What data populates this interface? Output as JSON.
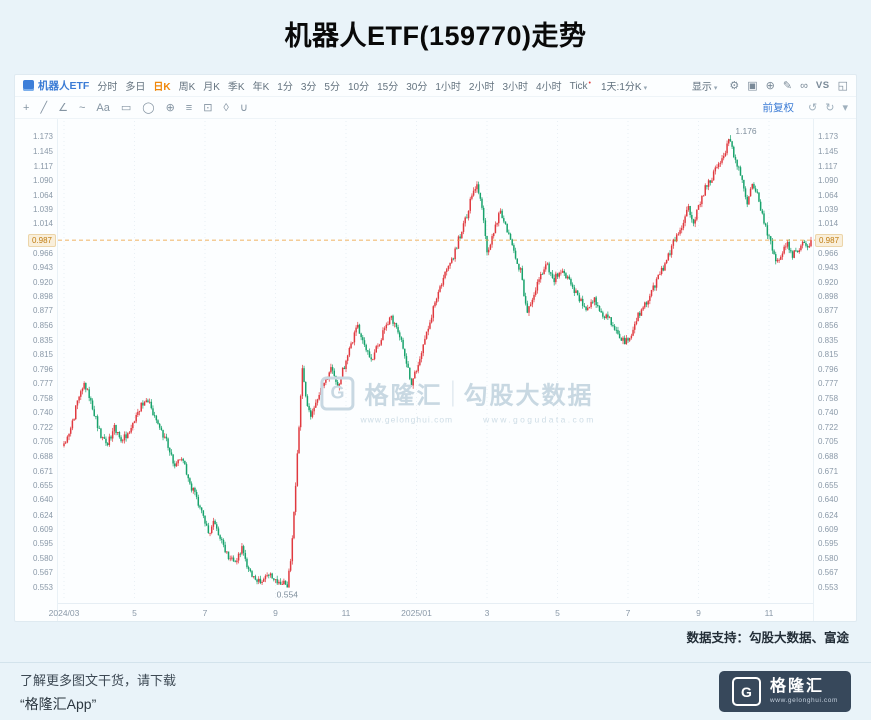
{
  "page": {
    "title": "机器人ETF(159770)走势"
  },
  "toolbar": {
    "symbol": "机器人ETF",
    "periods": [
      "分时",
      "多日",
      "日K",
      "周K",
      "月K",
      "季K",
      "年K",
      "1分",
      "3分",
      "5分",
      "10分",
      "15分",
      "30分",
      "1小时",
      "2小时",
      "3小时",
      "4小时",
      "Tick"
    ],
    "selected_period": "日K",
    "interval_selector": "1天:1分K",
    "display_label": "显示",
    "adjust_label": "前复权"
  },
  "toolbar_right_icons": [
    {
      "name": "settings-gear-icon",
      "glyph": "⚙"
    },
    {
      "name": "layout-grid-icon",
      "glyph": "▣"
    },
    {
      "name": "crosshair-icon",
      "glyph": "⊕"
    },
    {
      "name": "draw-pencil-icon",
      "glyph": "✎"
    },
    {
      "name": "link-chart-icon",
      "glyph": "∞"
    },
    {
      "name": "compare-vs-button",
      "glyph": "VS"
    },
    {
      "name": "fullscreen-icon",
      "glyph": "◱"
    }
  ],
  "draw_tool_icons": [
    {
      "name": "cursor-tool-icon",
      "glyph": "+"
    },
    {
      "name": "trendline-tool-icon",
      "glyph": "╱"
    },
    {
      "name": "angle-tool-icon",
      "glyph": "∠"
    },
    {
      "name": "wave-tool-icon",
      "glyph": "~"
    },
    {
      "name": "text-tool-icon",
      "glyph": "Aa"
    },
    {
      "name": "rect-tool-icon",
      "glyph": "▭"
    },
    {
      "name": "ellipse-tool-icon",
      "glyph": "◯"
    },
    {
      "name": "fib-tool-icon",
      "glyph": "⊕"
    },
    {
      "name": "measure-tool-icon",
      "glyph": "≡"
    },
    {
      "name": "snapshot-tool-icon",
      "glyph": "⊡"
    },
    {
      "name": "eraser-tool-icon",
      "glyph": "◊"
    },
    {
      "name": "magnet-tool-icon",
      "glyph": "∪"
    }
  ],
  "history_icons": [
    {
      "name": "undo-icon",
      "glyph": "↺"
    },
    {
      "name": "redo-icon",
      "glyph": "↻"
    },
    {
      "name": "collapse-toolbar-icon",
      "glyph": "▾"
    }
  ],
  "chart_data": {
    "type": "candlestick",
    "symbol": "机器人ETF",
    "code": "159770",
    "timeframe": "日K",
    "adjustment": "前复权",
    "y_scale": "log",
    "y_range": [
      0.546,
      1.192
    ],
    "up_color": "#e0393f",
    "down_color": "#17a26b",
    "grid_color": "#e4edf3",
    "price_line_color": "#ec9a2f",
    "last_price": 0.987,
    "price_tag": "0.987",
    "num_candles": 446,
    "low_annotation": {
      "label": "0.554",
      "index": 133
    },
    "high_annotation": {
      "label": "1.176",
      "index": 397
    },
    "y_ticks": [
      "1.173",
      "1.145",
      "1.117",
      "1.090",
      "1.064",
      "1.039",
      "1.014",
      "0.990",
      "0.966",
      "0.943",
      "0.920",
      "0.898",
      "0.877",
      "0.856",
      "0.835",
      "0.815",
      "0.796",
      "0.777",
      "0.758",
      "0.740",
      "0.722",
      "0.705",
      "0.688",
      "0.671",
      "0.655",
      "0.640",
      "0.624",
      "0.609",
      "0.595",
      "0.580",
      "0.567",
      "0.553"
    ],
    "x_ticks": [
      {
        "label": "2024/03",
        "index": 0
      },
      {
        "label": "5",
        "index": 42
      },
      {
        "label": "7",
        "index": 84
      },
      {
        "label": "9",
        "index": 126
      },
      {
        "label": "11",
        "index": 168
      },
      {
        "label": "2025/01",
        "index": 210
      },
      {
        "label": "3",
        "index": 252
      },
      {
        "label": "5",
        "index": 294
      },
      {
        "label": "7",
        "index": 336
      },
      {
        "label": "9",
        "index": 378
      },
      {
        "label": "11",
        "index": 420
      }
    ],
    "price_path": [
      [
        0,
        0.7
      ],
      [
        4,
        0.722
      ],
      [
        8,
        0.752
      ],
      [
        12,
        0.778
      ],
      [
        15,
        0.76
      ],
      [
        18,
        0.738
      ],
      [
        22,
        0.712
      ],
      [
        26,
        0.705
      ],
      [
        30,
        0.722
      ],
      [
        34,
        0.708
      ],
      [
        38,
        0.714
      ],
      [
        42,
        0.728
      ],
      [
        46,
        0.748
      ],
      [
        50,
        0.753
      ],
      [
        54,
        0.738
      ],
      [
        58,
        0.718
      ],
      [
        62,
        0.7
      ],
      [
        66,
        0.673
      ],
      [
        70,
        0.688
      ],
      [
        74,
        0.662
      ],
      [
        78,
        0.646
      ],
      [
        82,
        0.628
      ],
      [
        86,
        0.606
      ],
      [
        90,
        0.618
      ],
      [
        94,
        0.596
      ],
      [
        98,
        0.583
      ],
      [
        102,
        0.576
      ],
      [
        106,
        0.589
      ],
      [
        110,
        0.571
      ],
      [
        114,
        0.561
      ],
      [
        118,
        0.557
      ],
      [
        122,
        0.568
      ],
      [
        126,
        0.561
      ],
      [
        130,
        0.557
      ],
      [
        133,
        0.555
      ],
      [
        135,
        0.576
      ],
      [
        137,
        0.626
      ],
      [
        139,
        0.692
      ],
      [
        141,
        0.762
      ],
      [
        142,
        0.798
      ],
      [
        144,
        0.756
      ],
      [
        147,
        0.733
      ],
      [
        151,
        0.758
      ],
      [
        155,
        0.776
      ],
      [
        159,
        0.798
      ],
      [
        163,
        0.773
      ],
      [
        167,
        0.8
      ],
      [
        171,
        0.83
      ],
      [
        175,
        0.856
      ],
      [
        179,
        0.832
      ],
      [
        183,
        0.806
      ],
      [
        187,
        0.828
      ],
      [
        191,
        0.852
      ],
      [
        195,
        0.868
      ],
      [
        199,
        0.846
      ],
      [
        203,
        0.816
      ],
      [
        207,
        0.776
      ],
      [
        211,
        0.8
      ],
      [
        215,
        0.836
      ],
      [
        219,
        0.872
      ],
      [
        223,
        0.906
      ],
      [
        227,
        0.93
      ],
      [
        231,
        0.952
      ],
      [
        235,
        0.988
      ],
      [
        239,
        1.02
      ],
      [
        243,
        1.062
      ],
      [
        246,
        1.09
      ],
      [
        249,
        1.042
      ],
      [
        252,
        0.962
      ],
      [
        256,
        1.0
      ],
      [
        260,
        1.036
      ],
      [
        264,
        1.006
      ],
      [
        268,
        0.972
      ],
      [
        272,
        0.936
      ],
      [
        276,
        0.872
      ],
      [
        280,
        0.906
      ],
      [
        284,
        0.932
      ],
      [
        288,
        0.946
      ],
      [
        292,
        0.926
      ],
      [
        296,
        0.936
      ],
      [
        300,
        0.928
      ],
      [
        304,
        0.906
      ],
      [
        308,
        0.892
      ],
      [
        312,
        0.88
      ],
      [
        316,
        0.892
      ],
      [
        320,
        0.873
      ],
      [
        324,
        0.866
      ],
      [
        328,
        0.852
      ],
      [
        332,
        0.838
      ],
      [
        336,
        0.832
      ],
      [
        340,
        0.858
      ],
      [
        344,
        0.88
      ],
      [
        348,
        0.896
      ],
      [
        352,
        0.916
      ],
      [
        356,
        0.938
      ],
      [
        360,
        0.962
      ],
      [
        364,
        0.988
      ],
      [
        368,
        1.012
      ],
      [
        372,
        1.04
      ],
      [
        375,
        1.018
      ],
      [
        378,
        1.042
      ],
      [
        382,
        1.076
      ],
      [
        386,
        1.096
      ],
      [
        390,
        1.122
      ],
      [
        394,
        1.148
      ],
      [
        397,
        1.17
      ],
      [
        399,
        1.138
      ],
      [
        402,
        1.112
      ],
      [
        405,
        1.078
      ],
      [
        407,
        1.054
      ],
      [
        410,
        1.088
      ],
      [
        413,
        1.068
      ],
      [
        416,
        1.028
      ],
      [
        419,
        1.0
      ],
      [
        422,
        0.972
      ],
      [
        425,
        0.952
      ],
      [
        428,
        0.968
      ],
      [
        431,
        0.978
      ],
      [
        434,
        0.962
      ],
      [
        437,
        0.972
      ],
      [
        440,
        0.986
      ],
      [
        443,
        0.976
      ],
      [
        445,
        0.987
      ]
    ]
  },
  "support_line": "数据支持：勾股大数据、富途",
  "watermark": {
    "brand_letter": "G",
    "brand": "格隆汇",
    "partner": "勾股大数据",
    "url1": "www.gelonghui.com",
    "url2": "www.gogudata.com"
  },
  "footer": {
    "note_line1": "了解更多图文干货，请下载",
    "note_line2": "“格隆汇App”",
    "logo_letter": "G",
    "logo_text": "格隆汇",
    "logo_url": "www.gelonghui.com"
  }
}
